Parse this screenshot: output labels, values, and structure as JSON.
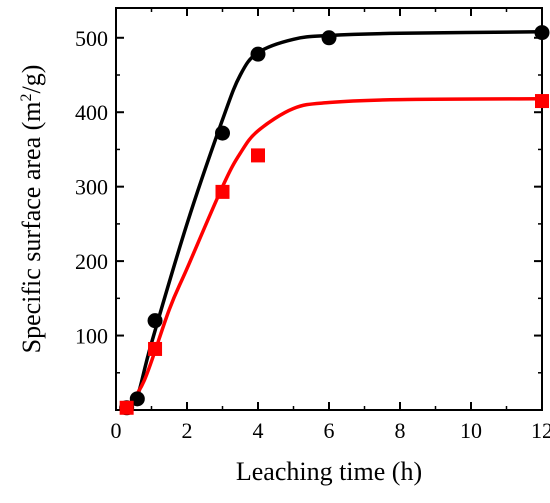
{
  "chart_data": {
    "type": "scatter",
    "xlabel": "Leaching time (h)",
    "ylabel": {
      "text_before": "Specific surface area (m",
      "superscript": "2",
      "text_after": "/g)"
    },
    "xlim": [
      0,
      12
    ],
    "ylim": [
      0,
      540
    ],
    "xticks": [
      0,
      2,
      4,
      6,
      8,
      10,
      12
    ],
    "yticks": [
      100,
      200,
      300,
      400,
      500
    ],
    "grid": false,
    "legend": "none",
    "series": [
      {
        "color": "#000000",
        "marker": "circle",
        "points": [
          [
            0.3,
            3
          ],
          [
            0.6,
            15
          ],
          [
            1.1,
            120
          ],
          [
            3,
            372
          ],
          [
            4,
            478
          ],
          [
            6,
            500
          ],
          [
            12,
            507
          ]
        ],
        "curve": [
          [
            0.3,
            3
          ],
          [
            0.6,
            18
          ],
          [
            1.0,
            90
          ],
          [
            2.0,
            250
          ],
          [
            3.0,
            390
          ],
          [
            3.5,
            450
          ],
          [
            4.0,
            480
          ],
          [
            5.0,
            498
          ],
          [
            6.0,
            503
          ],
          [
            8.0,
            506
          ],
          [
            12.0,
            508
          ]
        ]
      },
      {
        "color": "#ff0000",
        "marker": "square",
        "points": [
          [
            0.3,
            3
          ],
          [
            1.1,
            82
          ],
          [
            3,
            293
          ],
          [
            4,
            342
          ],
          [
            12,
            415
          ]
        ],
        "curve": [
          [
            0.3,
            3
          ],
          [
            0.8,
            40
          ],
          [
            1.5,
            135
          ],
          [
            2.0,
            190
          ],
          [
            3.0,
            300
          ],
          [
            3.5,
            345
          ],
          [
            4.0,
            375
          ],
          [
            5.0,
            405
          ],
          [
            6.0,
            413
          ],
          [
            8.0,
            417
          ],
          [
            12.0,
            418
          ]
        ]
      }
    ]
  }
}
